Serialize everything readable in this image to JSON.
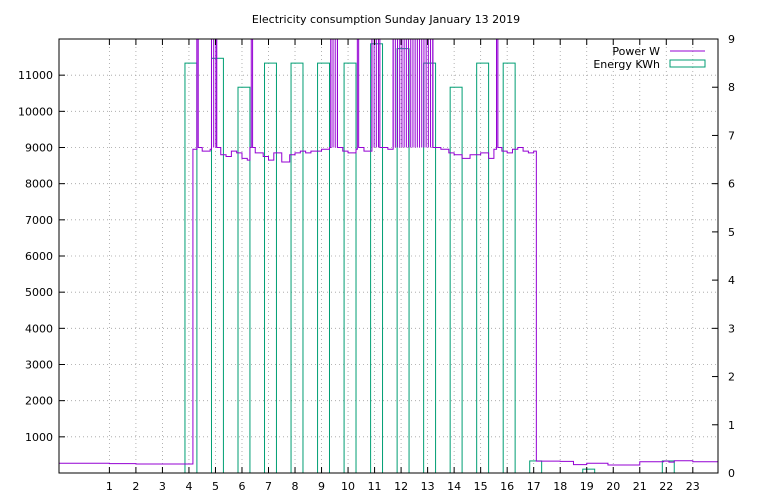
{
  "chart_data": {
    "type": "line",
    "title": "Electricity consumption Sunday January 13 2019",
    "x_ticks": [
      1,
      2,
      3,
      4,
      5,
      6,
      7,
      8,
      9,
      10,
      11,
      12,
      13,
      14,
      15,
      16,
      17,
      18,
      19,
      20,
      21,
      22,
      23
    ],
    "xlim": [
      -0.9,
      23.95
    ],
    "y_left": {
      "lim": [
        0,
        12000
      ],
      "ticks": [
        1000,
        2000,
        3000,
        4000,
        5000,
        6000,
        7000,
        8000,
        9000,
        10000,
        11000
      ]
    },
    "y_right": {
      "lim": [
        0,
        9
      ],
      "ticks": [
        0,
        1,
        2,
        3,
        4,
        5,
        6,
        7,
        8,
        9
      ]
    },
    "grid": true,
    "legend_position": "top-right",
    "series": [
      {
        "name": "Power W",
        "axis": "left",
        "color": "#9400d3",
        "style": "steps",
        "points": [
          [
            -0.9,
            270
          ],
          [
            1.0,
            260
          ],
          [
            2.0,
            250
          ],
          [
            3.0,
            250
          ],
          [
            4.1,
            250
          ],
          [
            4.15,
            8950
          ],
          [
            4.3,
            12000
          ],
          [
            4.35,
            9000
          ],
          [
            4.5,
            8900
          ],
          [
            4.8,
            8950
          ],
          [
            4.85,
            12000
          ],
          [
            5.05,
            9000
          ],
          [
            5.2,
            8800
          ],
          [
            5.4,
            8750
          ],
          [
            5.6,
            8900
          ],
          [
            5.8,
            8850
          ],
          [
            6.0,
            8700
          ],
          [
            6.2,
            8650
          ],
          [
            6.3,
            9000
          ],
          [
            6.35,
            12000
          ],
          [
            6.4,
            9000
          ],
          [
            6.5,
            8850
          ],
          [
            6.8,
            8750
          ],
          [
            7.0,
            8650
          ],
          [
            7.2,
            8850
          ],
          [
            7.5,
            8600
          ],
          [
            7.8,
            8800
          ],
          [
            8.0,
            8850
          ],
          [
            8.2,
            8900
          ],
          [
            8.4,
            8850
          ],
          [
            8.6,
            8900
          ],
          [
            9.0,
            8950
          ],
          [
            9.3,
            9000
          ],
          [
            9.35,
            12000
          ],
          [
            9.6,
            9000
          ],
          [
            9.8,
            8900
          ],
          [
            10.0,
            8850
          ],
          [
            10.3,
            8950
          ],
          [
            10.35,
            12000
          ],
          [
            10.4,
            9000
          ],
          [
            10.6,
            8900
          ],
          [
            10.9,
            12000
          ],
          [
            11.2,
            9000
          ],
          [
            11.5,
            8950
          ],
          [
            11.7,
            12000
          ],
          [
            13.2,
            9000
          ],
          [
            13.5,
            8950
          ],
          [
            13.8,
            8850
          ],
          [
            14.0,
            8800
          ],
          [
            14.3,
            8700
          ],
          [
            14.6,
            8800
          ],
          [
            15.0,
            8850
          ],
          [
            15.3,
            8700
          ],
          [
            15.5,
            8950
          ],
          [
            15.6,
            12000
          ],
          [
            15.65,
            9000
          ],
          [
            15.8,
            8900
          ],
          [
            16.0,
            8850
          ],
          [
            16.2,
            8950
          ],
          [
            16.4,
            9000
          ],
          [
            16.6,
            8900
          ],
          [
            16.8,
            8850
          ],
          [
            17.0,
            8900
          ],
          [
            17.1,
            330
          ],
          [
            18.0,
            320
          ],
          [
            18.5,
            230
          ],
          [
            19.0,
            270
          ],
          [
            19.8,
            220
          ],
          [
            20.0,
            220
          ],
          [
            21.0,
            310
          ],
          [
            21.9,
            330
          ],
          [
            22.1,
            300
          ],
          [
            22.3,
            340
          ],
          [
            23.0,
            310
          ],
          [
            23.95,
            310
          ]
        ]
      },
      {
        "name": "Energy KWh",
        "axis": "right",
        "color": "#009e73",
        "style": "impulse-boxes",
        "bars": [
          [
            3.85,
            8.5
          ],
          [
            4.85,
            8.6
          ],
          [
            5.85,
            8.0
          ],
          [
            6.85,
            8.5
          ],
          [
            7.85,
            8.5
          ],
          [
            8.85,
            8.5
          ],
          [
            9.85,
            8.5
          ],
          [
            10.85,
            8.9
          ],
          [
            11.85,
            8.8
          ],
          [
            12.85,
            8.5
          ],
          [
            13.85,
            8.0
          ],
          [
            14.85,
            8.5
          ],
          [
            15.85,
            8.5
          ],
          [
            16.85,
            0.25
          ],
          [
            18.85,
            0.08
          ],
          [
            21.85,
            0.25
          ]
        ],
        "bar_width": 0.45
      }
    ]
  }
}
